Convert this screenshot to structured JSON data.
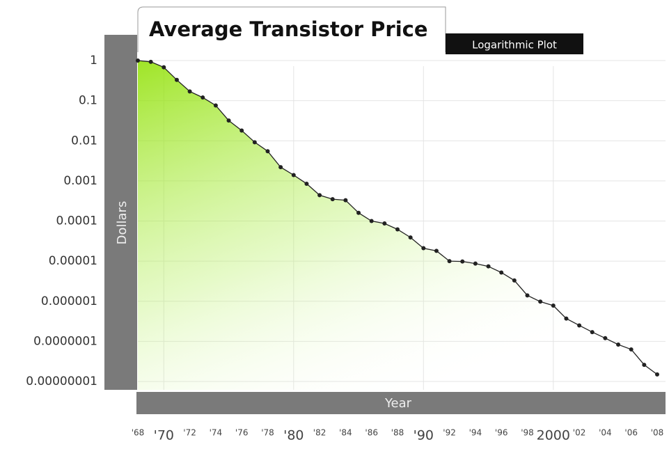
{
  "chart_data": {
    "type": "line",
    "title": "Average Transistor Price",
    "subtitle": "Logarithmic Plot",
    "y_label": "Dollars",
    "x_label": "Year",
    "log_y": true,
    "grid": true,
    "color": "#222222",
    "fill_color": "#8fe000",
    "x": [
      1968,
      1969,
      1970,
      1971,
      1972,
      1973,
      1974,
      1975,
      1976,
      1977,
      1978,
      1979,
      1980,
      1981,
      1982,
      1983,
      1984,
      1985,
      1986,
      1987,
      1988,
      1989,
      1990,
      1991,
      1992,
      1993,
      1994,
      1995,
      1996,
      1997,
      1998,
      1999,
      2000,
      2001,
      2002,
      2003,
      2004,
      2005,
      2006,
      2007,
      2008
    ],
    "values": [
      1,
      0.93,
      0.68,
      0.33,
      0.17,
      0.12,
      0.076,
      0.032,
      0.018,
      0.0092,
      0.0055,
      0.0022,
      0.0014,
      0.00085,
      0.00044,
      0.00035,
      0.00033,
      0.00016,
      0.0001,
      8.7e-05,
      6.2e-05,
      3.9e-05,
      2.1e-05,
      1.8e-05,
      1e-05,
      9.8e-06,
      8.7e-06,
      7.4e-06,
      5.2e-06,
      3.3e-06,
      1.4e-06,
      9.8e-07,
      7.8e-07,
      3.7e-07,
      2.5e-07,
      1.7e-07,
      1.2e-07,
      8.3e-08,
      6.3e-08,
      2.6e-08,
      1.5e-08
    ],
    "xlim": [
      1968,
      2008
    ],
    "ylim": [
      1e-08,
      1
    ],
    "xticks": [
      {
        "value": 1968,
        "label": "'68"
      },
      {
        "value": 1970,
        "label": "'70"
      },
      {
        "value": 1972,
        "label": "'72"
      },
      {
        "value": 1974,
        "label": "'74"
      },
      {
        "value": 1976,
        "label": "'76"
      },
      {
        "value": 1978,
        "label": "'78"
      },
      {
        "value": 1980,
        "label": "'80"
      },
      {
        "value": 1982,
        "label": "'82"
      },
      {
        "value": 1984,
        "label": "'84"
      },
      {
        "value": 1986,
        "label": "'86"
      },
      {
        "value": 1988,
        "label": "'88"
      },
      {
        "value": 1990,
        "label": "'90"
      },
      {
        "value": 1992,
        "label": "'92"
      },
      {
        "value": 1994,
        "label": "'94"
      },
      {
        "value": 1996,
        "label": "'96"
      },
      {
        "value": 1998,
        "label": "'98"
      },
      2000,
      {
        "value": 2002,
        "label": "'02"
      },
      {
        "value": 2004,
        "label": "'04"
      },
      {
        "value": 2006,
        "label": "'06"
      },
      {
        "value": 2008,
        "label": "'08"
      }
    ],
    "yticks": [
      1,
      0.1,
      0.01,
      0.001,
      0.0001,
      1e-05,
      1e-06,
      {
        "value": 1e-07,
        "label": "0.0000001"
      },
      {
        "value": 1e-08,
        "label": "0.00000001"
      }
    ]
  }
}
